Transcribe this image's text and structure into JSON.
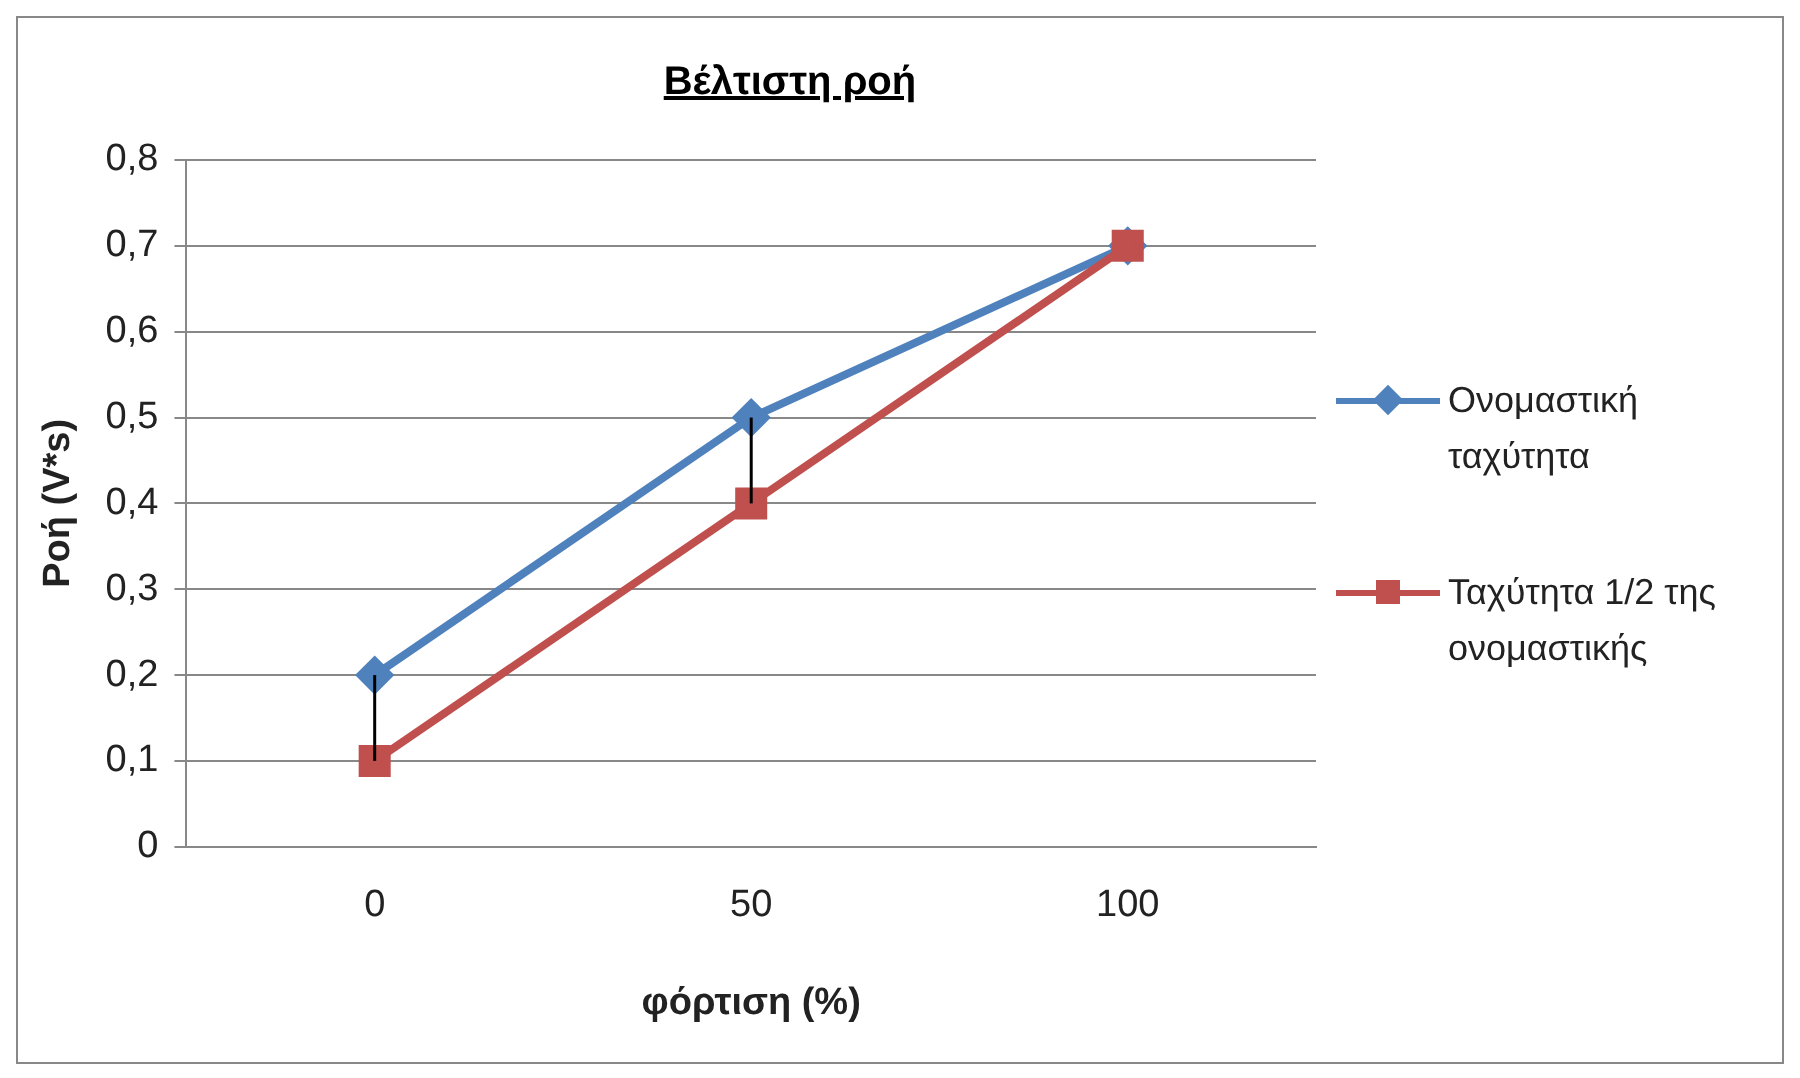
{
  "chart_data": {
    "type": "line",
    "title": "Βέλτιστη ροή",
    "xlabel": "φόρτιση (%)",
    "ylabel": "Ροή (V*s)",
    "categories": [
      "0",
      "50",
      "100"
    ],
    "series": [
      {
        "name": "Ονομαστική ταχύτητα",
        "color": "#4f81bd",
        "marker": "diamond",
        "values": [
          0.2,
          0.5,
          0.7
        ]
      },
      {
        "name": "Ταχύτητα 1/2 της ονομαστικής",
        "color": "#c0504d",
        "marker": "square",
        "values": [
          0.1,
          0.4,
          0.7
        ],
        "errors": [
          [
            0.1,
            0.2
          ],
          [
            0.4,
            0.5
          ],
          null
        ]
      }
    ],
    "ylim": [
      0,
      0.8
    ],
    "yticks": [
      0,
      {
        "value": 0.1,
        "label": "0,1"
      },
      {
        "value": 0.2,
        "label": "0,2"
      },
      {
        "value": 0.3,
        "label": "0,3"
      },
      {
        "value": 0.4,
        "label": "0,4"
      },
      {
        "value": 0.5,
        "label": "0,5"
      },
      {
        "value": 0.6,
        "label": "0,6"
      },
      {
        "value": 0.7,
        "label": "0,7"
      },
      {
        "value": 0.8,
        "label": "0,8"
      }
    ],
    "grid": "y",
    "legend": "right"
  }
}
